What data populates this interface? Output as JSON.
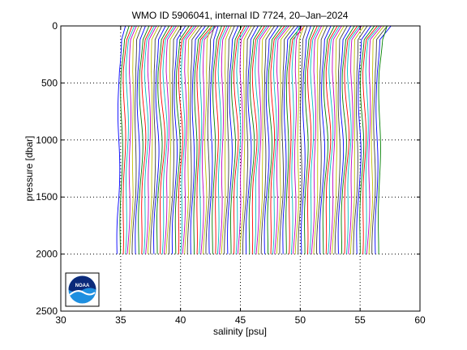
{
  "chart_data": {
    "type": "line",
    "title": "WMO ID 5906041, internal ID 7724, 20–Jan–2024",
    "xlabel": "salinity [psu]",
    "ylabel": "pressure [dbar]",
    "xlim": [
      30,
      60
    ],
    "ylim": [
      0,
      2500
    ],
    "y_reversed": true,
    "grid": true,
    "x_ticks": [
      "30",
      "35",
      "40",
      "45",
      "50",
      "55",
      "60"
    ],
    "y_ticks": [
      "0",
      "500",
      "1000",
      "1500",
      "2000",
      "2500"
    ],
    "profile_count": 100,
    "profile_offset_step": 0.22,
    "first_profile_base_salinity": 34.85,
    "max_pressure": 2000,
    "series_colors": [
      "#0000ff",
      "#008000",
      "#ff0000",
      "#00bfbf",
      "#bf00bf",
      "#bfbf00",
      "#404040"
    ]
  },
  "logo": {
    "text": "NOAA"
  }
}
